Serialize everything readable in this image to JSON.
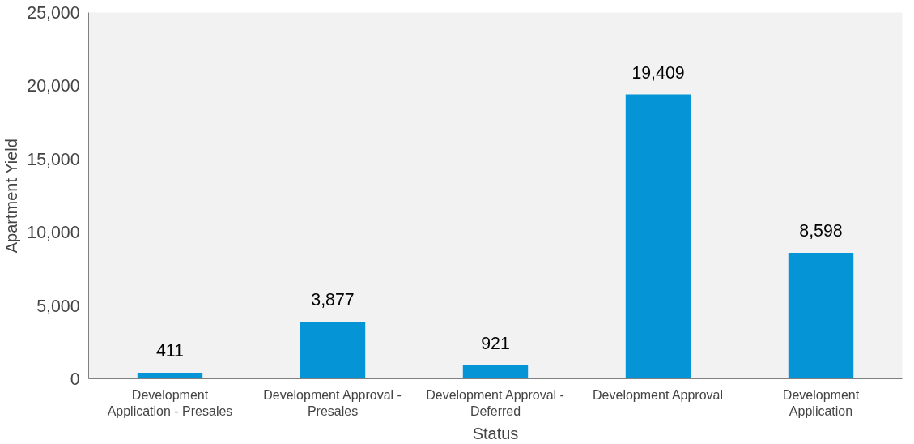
{
  "chart_data": {
    "type": "bar",
    "xlabel": "Status",
    "ylabel": "Apartment Yield",
    "categories": [
      "Development Application - Presales",
      "Development Approval - Presales",
      "Development Approval - Deferred",
      "Development Approval",
      "Development Application"
    ],
    "values": [
      411,
      3877,
      921,
      19409,
      8598
    ],
    "color": "#0595d6",
    "ylim": [
      0,
      25000
    ],
    "yticks": [
      {
        "value": 0,
        "label": "0"
      },
      {
        "value": 5000,
        "label": "5,000"
      },
      {
        "value": 10000,
        "label": "10,000"
      },
      {
        "value": 15000,
        "label": "15,000"
      },
      {
        "value": 20000,
        "label": "20,000"
      },
      {
        "value": 25000,
        "label": "25,000"
      }
    ],
    "value_labels": [
      "411",
      "3,877",
      "921",
      "19,409",
      "8,598"
    ],
    "grid": false
  }
}
